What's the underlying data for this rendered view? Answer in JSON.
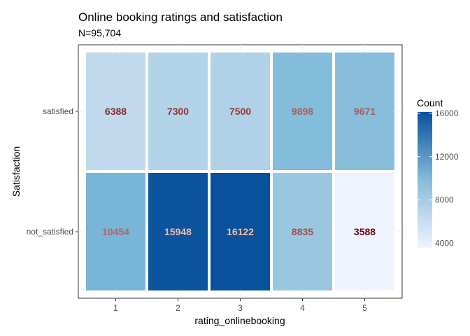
{
  "chart_data": {
    "type": "heatmap",
    "title": "Online booking ratings and satisfaction",
    "subtitle": "N=95,704",
    "xlabel": "rating_onlinebooking",
    "ylabel": "Satisfaction",
    "x_categories": [
      "1",
      "2",
      "3",
      "4",
      "5"
    ],
    "y_categories": [
      "not_satisfied",
      "satisfied"
    ],
    "cells": [
      {
        "x": "1",
        "y": "satisfied",
        "value": 6388
      },
      {
        "x": "2",
        "y": "satisfied",
        "value": 7300
      },
      {
        "x": "3",
        "y": "satisfied",
        "value": 7500
      },
      {
        "x": "4",
        "y": "satisfied",
        "value": 9898
      },
      {
        "x": "5",
        "y": "satisfied",
        "value": 9671
      },
      {
        "x": "1",
        "y": "not_satisfied",
        "value": 10454
      },
      {
        "x": "2",
        "y": "not_satisfied",
        "value": 15948
      },
      {
        "x": "3",
        "y": "not_satisfied",
        "value": 16122
      },
      {
        "x": "4",
        "y": "not_satisfied",
        "value": 8835
      },
      {
        "x": "5",
        "y": "not_satisfied",
        "value": 3588
      }
    ],
    "legend": {
      "title": "Count",
      "ticks": [
        4000,
        8000,
        12000,
        16000
      ],
      "range": [
        3588,
        16122
      ],
      "low_color": "#eff3ff",
      "high_color": "#08519c",
      "placement": "right"
    },
    "label_color_range": [
      "#67000d",
      "#fcbba1"
    ],
    "grid": true
  }
}
